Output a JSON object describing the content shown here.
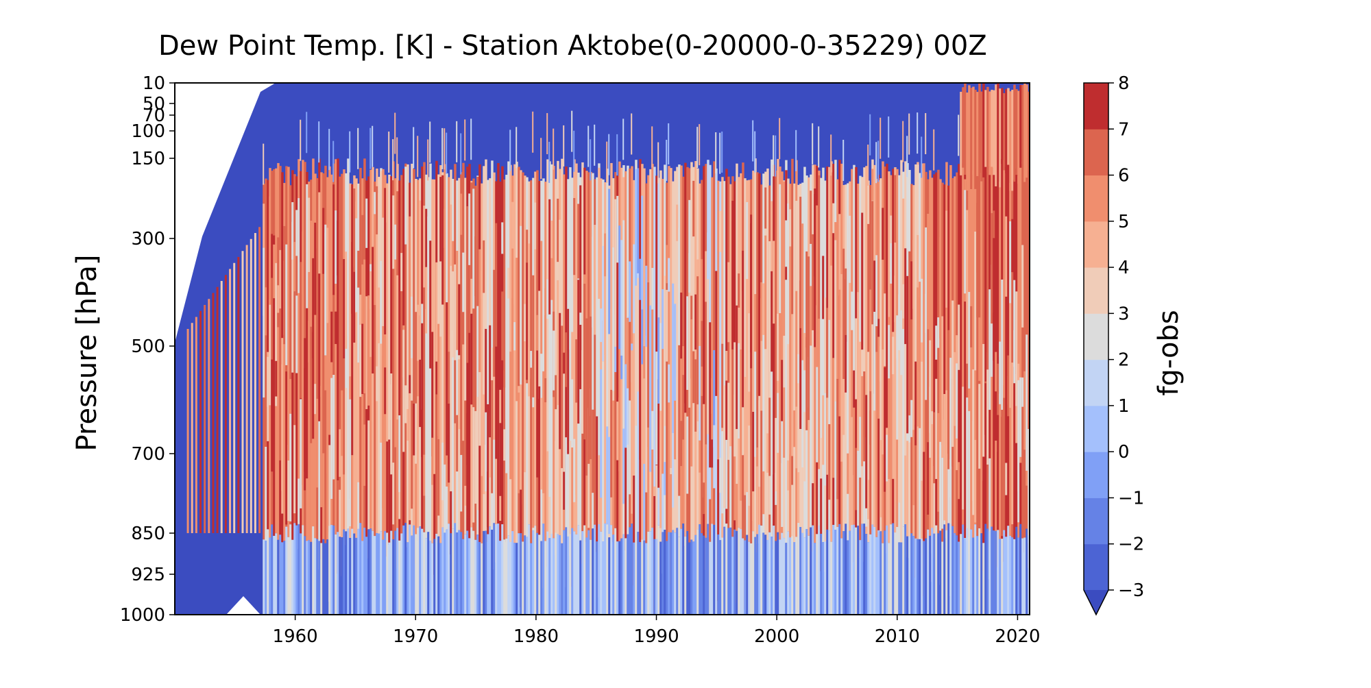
{
  "chart_data": {
    "type": "heatmap",
    "title": "Dew Point Temp. [K]   - Station Aktobe(0-20000-0-35229) 00Z",
    "xlabel": "",
    "ylabel": "Pressure [hPa]",
    "xlim": [
      1950,
      2021
    ],
    "x_ticks": [
      "1960",
      "1970",
      "1980",
      "1990",
      "2000",
      "2010",
      "2020"
    ],
    "x_tick_values": [
      1960,
      1970,
      1980,
      1990,
      2000,
      2010,
      2020
    ],
    "y_ticks": [
      "10",
      "50",
      "70",
      "100",
      "150",
      "300",
      "500",
      "700",
      "850",
      "925",
      "1000"
    ],
    "y_tick_values": [
      10,
      50,
      70,
      100,
      150,
      300,
      500,
      700,
      850,
      925,
      1000
    ],
    "y_scale": "irregular pressure levels, increasing downward",
    "colorbar": {
      "label": "fg-obs",
      "levels": [
        -3,
        -2,
        -1,
        0,
        1,
        2,
        3,
        4,
        5,
        6,
        7,
        8
      ],
      "tick_labels": [
        "−3",
        "−2",
        "−1",
        "0",
        "1",
        "2",
        "3",
        "4",
        "5",
        "6",
        "7",
        "8"
      ],
      "colors": [
        "#4c64d4",
        "#6582e6",
        "#80a0f6",
        "#a4c0fc",
        "#c2d4f4",
        "#dcdcdc",
        "#f0ccb8",
        "#f6b092",
        "#f08e6e",
        "#dc654f",
        "#bf2d2f"
      ],
      "under_color": "#3b4cc0",
      "extend": "min"
    },
    "colormap": "coolwarm",
    "data_summary": {
      "years_with_data": [
        1950,
        2021
      ],
      "high_values_levels": "300-850 hPa, mostly 4 to 8 (red)",
      "low_values_levels": "10-150 hPa and 925-1000 hPa, mostly below 1 (blue)",
      "upper_levels_red_after_year": 2015
    }
  }
}
